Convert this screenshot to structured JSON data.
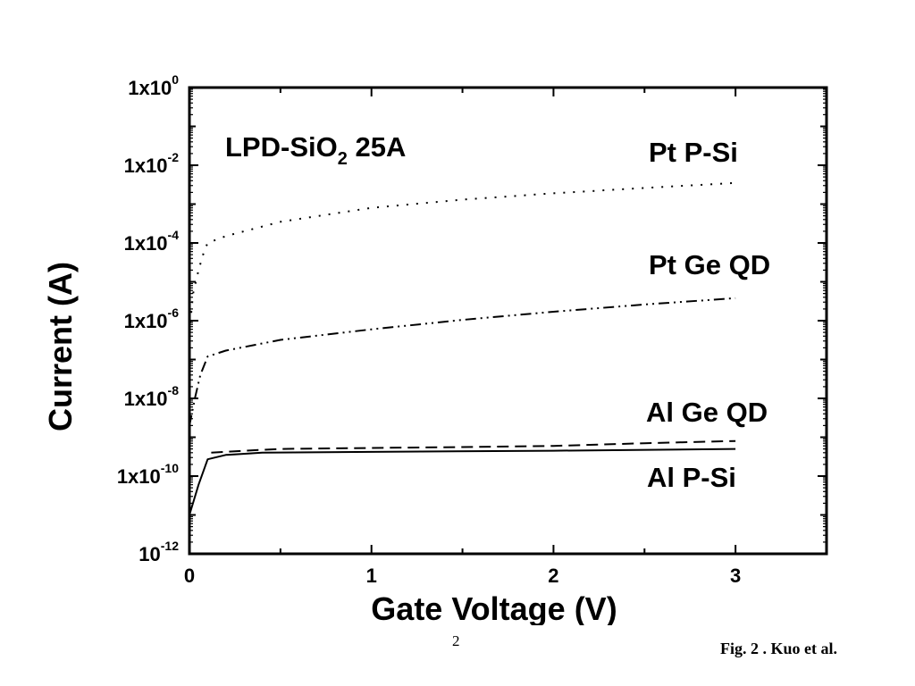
{
  "chart_data": {
    "type": "line",
    "xlabel": "Gate Voltage (V)",
    "ylabel": "Current (A)",
    "annotation": {
      "main": "LPD-SiO",
      "sub": "2",
      "rest": " 25A"
    },
    "xlim": [
      0,
      3.5
    ],
    "ylim": [
      1e-12,
      1
    ],
    "yscale": "log",
    "x_ticks": [
      "0",
      "1",
      "2",
      "3"
    ],
    "y_ticks": [
      {
        "base": "1x10",
        "exp": "0"
      },
      {
        "base": "1x10",
        "exp": "-2"
      },
      {
        "base": "1x10",
        "exp": "-4"
      },
      {
        "base": "1x10",
        "exp": "-6"
      },
      {
        "base": "1x10",
        "exp": "-8"
      },
      {
        "base": "1x10",
        "exp": "-10"
      },
      {
        "base": "10",
        "exp": "-12"
      }
    ],
    "grid": false,
    "series": [
      {
        "name": "Pt P-Si",
        "style": "dotted",
        "x": [
          0,
          0.02,
          0.05,
          0.08,
          0.1,
          0.2,
          0.5,
          1.0,
          1.5,
          2.0,
          2.5,
          3.0
        ],
        "y": [
          5e-07,
          5e-06,
          2e-05,
          6e-05,
          0.0001,
          0.00015,
          0.00035,
          0.0008,
          0.0013,
          0.0019,
          0.0026,
          0.0035
        ]
      },
      {
        "name": "Pt Ge QD",
        "style": "dash-dot-dot",
        "x": [
          0,
          0.03,
          0.06,
          0.1,
          0.2,
          0.5,
          1.0,
          1.5,
          2.0,
          2.5,
          3.0
        ],
        "y": [
          2e-09,
          1e-08,
          4e-08,
          1.2e-07,
          1.7e-07,
          3.2e-07,
          6e-07,
          1.05e-06,
          1.7e-06,
          2.6e-06,
          3.8e-06
        ]
      },
      {
        "name": "Al Ge QD",
        "style": "dashed",
        "x": [
          0.12,
          0.3,
          0.5,
          1.0,
          1.5,
          2.0,
          2.5,
          3.0
        ],
        "y": [
          4e-10,
          4.5e-10,
          5e-10,
          5.3e-10,
          5.6e-10,
          6e-10,
          7e-10,
          8e-10
        ]
      },
      {
        "name": "Al P-Si",
        "style": "solid",
        "x": [
          0,
          0.05,
          0.1,
          0.2,
          0.4,
          1.0,
          2.0,
          3.0
        ],
        "y": [
          1e-11,
          6e-11,
          2.7e-10,
          3.5e-10,
          4e-10,
          4.2e-10,
          4.5e-10,
          5e-10
        ]
      }
    ]
  },
  "footer": {
    "page_number": "2",
    "caption": "Fig. 2 . Kuo et al."
  }
}
